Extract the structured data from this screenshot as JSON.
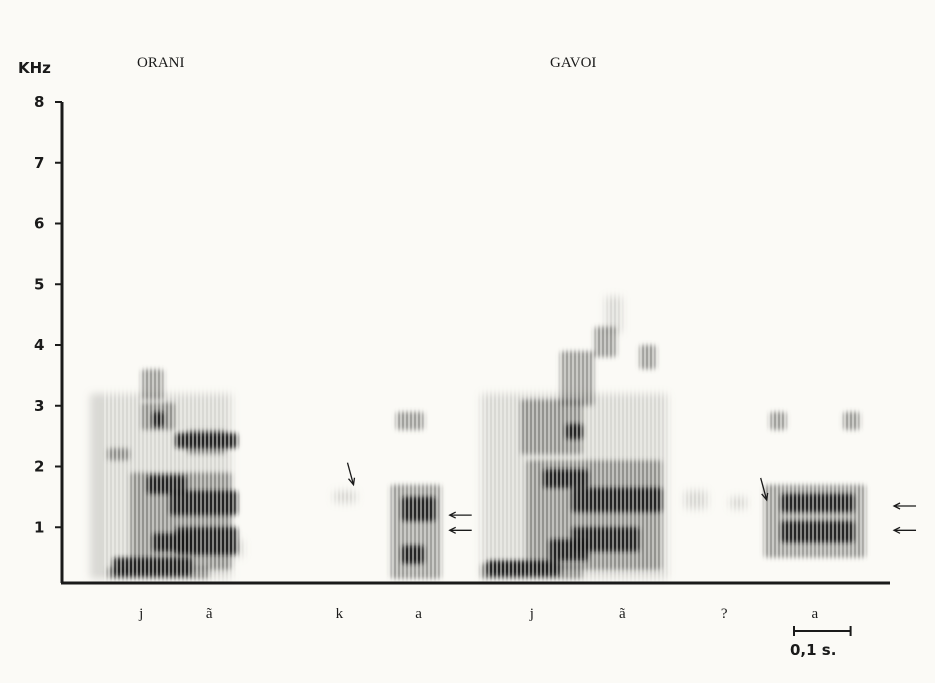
{
  "chart_data": {
    "type": "spectrogram",
    "y_unit_label": "KHz",
    "y_ticks": [
      1,
      2,
      3,
      4,
      5,
      6,
      7,
      8
    ],
    "ylim": [
      0.15,
      8
    ],
    "x_unit": "s",
    "xlim": [
      0,
      1.5
    ],
    "scale_bar": {
      "label": "0,1 s.",
      "duration": 0.1
    },
    "panels": [
      {
        "title": "ORANI",
        "x_center": 0.255
      },
      {
        "title": "GAVOI",
        "x_center": 0.92
      }
    ],
    "segments": [
      {
        "label": "j",
        "t": 0.14
      },
      {
        "label": "ã",
        "t": 0.26
      },
      {
        "label": "k",
        "t": 0.49
      },
      {
        "label": "a",
        "t": 0.63
      },
      {
        "label": "j",
        "t": 0.83
      },
      {
        "label": "ã",
        "t": 0.99
      },
      {
        "label": "?",
        "t": 1.17
      },
      {
        "label": "a",
        "t": 1.33
      }
    ],
    "arrows": [
      {
        "t": 0.515,
        "f": 1.7,
        "dir": "down"
      },
      {
        "t": 0.685,
        "f": 1.2,
        "dir": "left"
      },
      {
        "t": 0.685,
        "f": 0.95,
        "dir": "left"
      },
      {
        "t": 1.245,
        "f": 1.45,
        "dir": "down"
      },
      {
        "t": 1.47,
        "f": 1.35,
        "dir": "left"
      },
      {
        "t": 1.47,
        "f": 0.95,
        "dir": "left"
      }
    ],
    "dark_regions": [
      {
        "t0": 0.09,
        "t1": 0.23,
        "f0": 0.2,
        "f1": 0.5
      },
      {
        "t0": 0.16,
        "t1": 0.23,
        "f0": 0.6,
        "f1": 0.9
      },
      {
        "t0": 0.2,
        "t1": 0.31,
        "f0": 0.55,
        "f1": 1.0
      },
      {
        "t0": 0.15,
        "t1": 0.22,
        "f0": 1.55,
        "f1": 1.85
      },
      {
        "t0": 0.19,
        "t1": 0.31,
        "f0": 1.2,
        "f1": 1.6
      },
      {
        "t0": 0.2,
        "t1": 0.31,
        "f0": 2.3,
        "f1": 2.55
      },
      {
        "t0": 0.16,
        "t1": 0.18,
        "f0": 2.65,
        "f1": 2.9
      },
      {
        "t0": 0.6,
        "t1": 0.66,
        "f0": 1.1,
        "f1": 1.5
      },
      {
        "t0": 0.6,
        "t1": 0.64,
        "f0": 0.4,
        "f1": 0.7
      },
      {
        "t0": 0.75,
        "t1": 0.88,
        "f0": 0.2,
        "f1": 0.45
      },
      {
        "t0": 0.86,
        "t1": 0.93,
        "f0": 0.45,
        "f1": 0.8
      },
      {
        "t0": 0.9,
        "t1": 1.02,
        "f0": 0.6,
        "f1": 1.0
      },
      {
        "t0": 0.85,
        "t1": 0.93,
        "f0": 1.65,
        "f1": 1.95
      },
      {
        "t0": 0.9,
        "t1": 1.06,
        "f0": 1.25,
        "f1": 1.65
      },
      {
        "t0": 0.89,
        "t1": 0.92,
        "f0": 2.45,
        "f1": 2.7
      },
      {
        "t0": 1.27,
        "t1": 1.4,
        "f0": 1.25,
        "f1": 1.55
      },
      {
        "t0": 1.27,
        "t1": 1.4,
        "f0": 0.75,
        "f1": 1.1
      }
    ],
    "medium_regions": [
      {
        "t0": 0.08,
        "t1": 0.26,
        "f0": 0.15,
        "f1": 0.35
      },
      {
        "t0": 0.12,
        "t1": 0.3,
        "f0": 0.3,
        "f1": 1.9
      },
      {
        "t0": 0.08,
        "t1": 0.12,
        "f0": 2.1,
        "f1": 2.3
      },
      {
        "t0": 0.14,
        "t1": 0.2,
        "f0": 2.6,
        "f1": 3.05
      },
      {
        "t0": 0.14,
        "t1": 0.18,
        "f0": 3.1,
        "f1": 3.6
      },
      {
        "t0": 0.22,
        "t1": 0.29,
        "f0": 2.2,
        "f1": 2.6
      },
      {
        "t0": 0.58,
        "t1": 0.67,
        "f0": 0.15,
        "f1": 1.7
      },
      {
        "t0": 0.59,
        "t1": 0.64,
        "f0": 2.6,
        "f1": 2.9
      },
      {
        "t0": 0.74,
        "t1": 0.92,
        "f0": 0.15,
        "f1": 0.4
      },
      {
        "t0": 0.82,
        "t1": 1.06,
        "f0": 0.3,
        "f1": 2.1
      },
      {
        "t0": 0.81,
        "t1": 0.92,
        "f0": 2.2,
        "f1": 3.1
      },
      {
        "t0": 0.88,
        "t1": 0.94,
        "f0": 3.0,
        "f1": 3.9
      },
      {
        "t0": 0.94,
        "t1": 0.98,
        "f0": 3.8,
        "f1": 4.3
      },
      {
        "t0": 1.02,
        "t1": 1.05,
        "f0": 3.6,
        "f1": 4.0
      },
      {
        "t0": 1.24,
        "t1": 1.42,
        "f0": 0.5,
        "f1": 1.7
      },
      {
        "t0": 1.25,
        "t1": 1.28,
        "f0": 2.6,
        "f1": 2.9
      },
      {
        "t0": 1.38,
        "t1": 1.41,
        "f0": 2.6,
        "f1": 2.9
      }
    ],
    "light_regions": [
      {
        "t0": 0.05,
        "t1": 0.3,
        "f0": 0.15,
        "f1": 3.2
      },
      {
        "t0": 0.28,
        "t1": 0.32,
        "f0": 0.5,
        "f1": 0.8
      },
      {
        "t0": 0.48,
        "t1": 0.52,
        "f0": 1.4,
        "f1": 1.6
      },
      {
        "t0": 0.74,
        "t1": 1.07,
        "f0": 0.15,
        "f1": 3.2
      },
      {
        "t0": 0.96,
        "t1": 0.99,
        "f0": 4.2,
        "f1": 4.8
      },
      {
        "t0": 1.1,
        "t1": 1.14,
        "f0": 1.3,
        "f1": 1.6
      },
      {
        "t0": 1.18,
        "t1": 1.21,
        "f0": 1.3,
        "f1": 1.5
      }
    ]
  }
}
